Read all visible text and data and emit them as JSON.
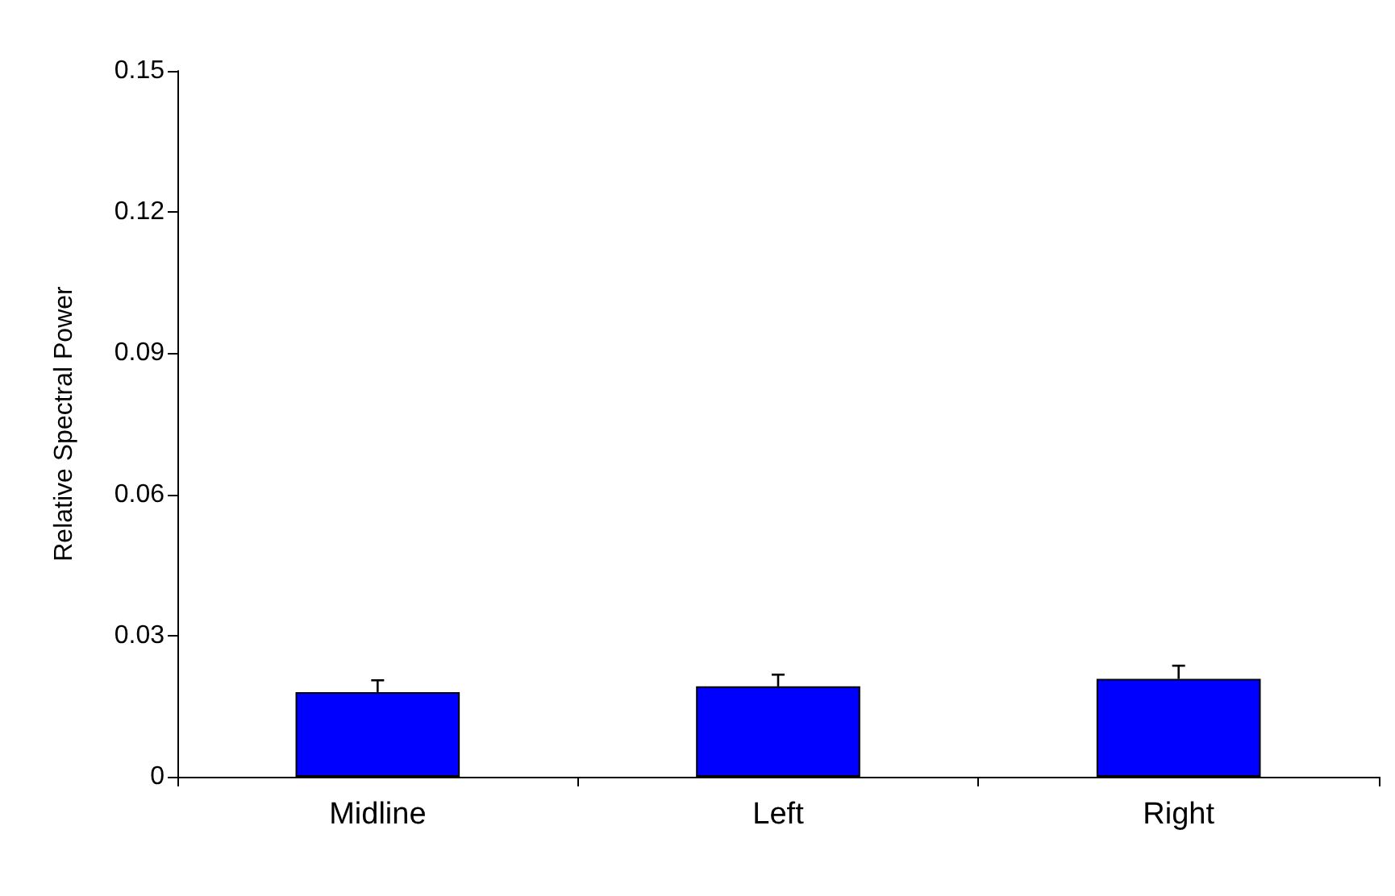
{
  "chart_data": {
    "type": "bar",
    "ylabel": "Relative Spectral Power",
    "categories": [
      "Midline",
      "Left",
      "Right"
    ],
    "values": [
      0.018,
      0.0192,
      0.0208
    ],
    "errors": [
      [
        0.018,
        0.0205
      ],
      [
        0.0192,
        0.0217
      ],
      [
        0.0208,
        0.0236
      ]
    ],
    "color": "#0000ff",
    "ylim": [
      0,
      0.15
    ],
    "yticks": [
      0,
      0.03,
      0.06,
      0.09,
      0.12,
      0.15
    ],
    "grid": false
  }
}
